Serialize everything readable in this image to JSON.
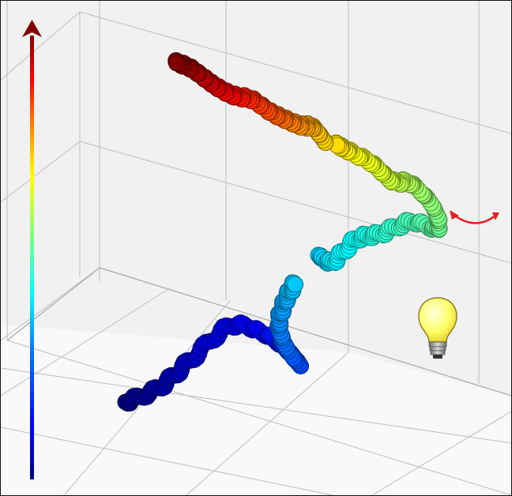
{
  "scene": {
    "colormap_stops": [
      "#00007f",
      "#0000ff",
      "#0080ff",
      "#00ffff",
      "#80ff80",
      "#ffff00",
      "#ff8000",
      "#ff0000",
      "#7f0000"
    ],
    "arrow_colors": {
      "top": "#7f0000",
      "bottom": "#00007f"
    },
    "rotate_arrow_color": "#e02020",
    "bulb_color": "#ffff66",
    "grid_color": "#bdbdbd",
    "background_color": "#f7f7f7"
  },
  "icons": {
    "rotate": "rotate-arrow-icon",
    "light": "light-bulb-icon",
    "colorbar": "vertical-color-arrow-icon"
  }
}
